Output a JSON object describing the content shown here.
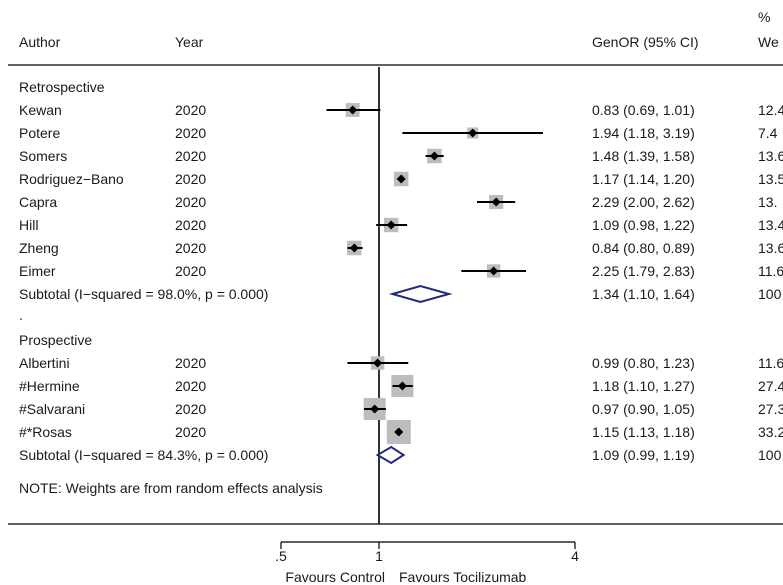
{
  "chart_data": {
    "type": "forest",
    "title": "",
    "headers": {
      "author": "Author",
      "year": "Year",
      "estimate": "GenOR (95% CI)",
      "weight_line1": "%",
      "weight_line2": "We"
    },
    "scale": "log",
    "xlim": [
      0.55,
      4.0
    ],
    "null_value": 1,
    "ticks": [
      {
        "value": 0.5,
        "label": ".5"
      },
      {
        "value": 1,
        "label": "1"
      },
      {
        "value": 4,
        "label": "4"
      }
    ],
    "favours": {
      "left": "Favours Control",
      "right": "Favours Tocilizumab"
    },
    "groups": [
      {
        "label": "Retrospective",
        "studies": [
          {
            "author": "Kewan",
            "year": "2020",
            "or": 0.83,
            "lo": 0.69,
            "hi": 1.01,
            "ci_text": "0.83 (0.69, 1.01)",
            "weight_text": "12.4"
          },
          {
            "author": "Potere",
            "year": "2020",
            "or": 1.94,
            "lo": 1.18,
            "hi": 3.19,
            "ci_text": "1.94 (1.18, 3.19)",
            "weight_text": "7.4"
          },
          {
            "author": "Somers",
            "year": "2020",
            "or": 1.48,
            "lo": 1.39,
            "hi": 1.58,
            "ci_text": "1.48 (1.39, 1.58)",
            "weight_text": "13.6"
          },
          {
            "author": "Rodriguez−Bano",
            "year": "2020",
            "or": 1.17,
            "lo": 1.14,
            "hi": 1.2,
            "ci_text": "1.17 (1.14, 1.20)",
            "weight_text": "13.5"
          },
          {
            "author": "Capra",
            "year": "2020",
            "or": 2.29,
            "lo": 2.0,
            "hi": 2.62,
            "ci_text": "2.29 (2.00, 2.62)",
            "weight_text": "13."
          },
          {
            "author": "Hill",
            "year": "2020",
            "or": 1.09,
            "lo": 0.98,
            "hi": 1.22,
            "ci_text": "1.09 (0.98, 1.22)",
            "weight_text": "13.4"
          },
          {
            "author": "Zheng",
            "year": "2020",
            "or": 0.84,
            "lo": 0.8,
            "hi": 0.89,
            "ci_text": "0.84 (0.80, 0.89)",
            "weight_text": "13.6"
          },
          {
            "author": "Eimer",
            "year": "2020",
            "or": 2.25,
            "lo": 1.79,
            "hi": 2.83,
            "ci_text": "2.25 (1.79, 2.83)",
            "weight_text": "11.6"
          }
        ],
        "subtotal": {
          "label": "Subtotal  (I−squared = 98.0%, p = 0.000)",
          "or": 1.34,
          "lo": 1.1,
          "hi": 1.64,
          "ci_text": "1.34 (1.10, 1.64)",
          "weight_text": "100"
        }
      },
      {
        "label": "Prospective",
        "studies": [
          {
            "author": "Albertini",
            "year": "2020",
            "or": 0.99,
            "lo": 0.8,
            "hi": 1.23,
            "ci_text": "0.99 (0.80, 1.23)",
            "weight_text": "11.6"
          },
          {
            "author": "#Hermine",
            "year": "2020",
            "or": 1.18,
            "lo": 1.1,
            "hi": 1.27,
            "ci_text": "1.18 (1.10, 1.27)",
            "weight_text": "27.4"
          },
          {
            "author": "#Salvarani",
            "year": "2020",
            "or": 0.97,
            "lo": 0.9,
            "hi": 1.05,
            "ci_text": "0.97 (0.90, 1.05)",
            "weight_text": "27.3"
          },
          {
            "author": "#*Rosas",
            "year": "2020",
            "or": 1.15,
            "lo": 1.13,
            "hi": 1.18,
            "ci_text": "1.15 (1.13, 1.18)",
            "weight_text": "33.2"
          }
        ],
        "subtotal": {
          "label": "Subtotal  (I−squared = 84.3%, p = 0.000)",
          "or": 1.09,
          "lo": 0.99,
          "hi": 1.19,
          "ci_text": "1.09 (0.99, 1.19)",
          "weight_text": "100"
        }
      }
    ],
    "separator_dot": ".",
    "note": "NOTE: Weights are from random effects analysis",
    "colors": {
      "ci_line": "#000000",
      "box": "#bdbdbd",
      "point": "#000000",
      "diamond": "#1f2a7a",
      "axis": "#000000"
    }
  }
}
